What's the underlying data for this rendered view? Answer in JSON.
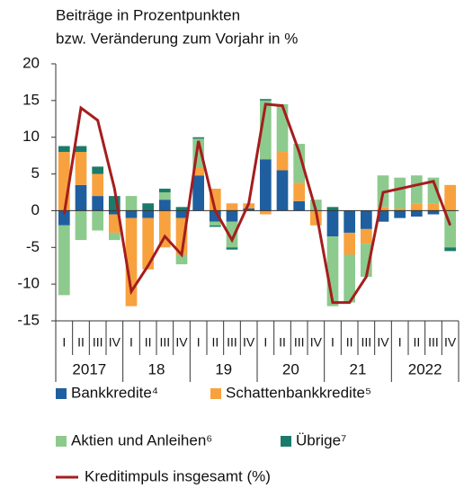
{
  "chart_data": {
    "type": "stacked_bar_line",
    "title_lines": [
      "Beiträge in Prozentpunkten",
      "bzw. Veränderung zum Vorjahr in %"
    ],
    "categories": [
      "I",
      "II",
      "III",
      "IV",
      "I",
      "II",
      "III",
      "IV",
      "I",
      "II",
      "III",
      "IV",
      "I",
      "II",
      "III",
      "IV",
      "I",
      "II",
      "III",
      "IV",
      "I",
      "II",
      "III",
      "IV"
    ],
    "year_labels": [
      "2017",
      "18",
      "19",
      "20",
      "21",
      "2022"
    ],
    "series": [
      {
        "name": "Bankkredite⁴",
        "color": "#1f5f9f",
        "values": [
          -2,
          3.5,
          2,
          -0.5,
          -1,
          -1,
          1.5,
          -1,
          4.8,
          -1.5,
          -1.5,
          0.3,
          7,
          5.5,
          1.3,
          0,
          -3.5,
          -3,
          -2.5,
          -1.5,
          -1,
          -0.8,
          -0.5,
          0
        ]
      },
      {
        "name": "Schattenbankkredite⁵",
        "color": "#f7a23e",
        "values": [
          8,
          4.5,
          3,
          -2.5,
          -12,
          -7,
          -5,
          -5,
          1,
          3,
          1,
          0.7,
          -0.5,
          2.5,
          2.5,
          -2,
          0,
          -3,
          -2,
          0.5,
          0.3,
          1,
          1,
          3.5
        ]
      },
      {
        "name": "Aktien und Anleihen⁶",
        "color": "#8dca8d",
        "values": [
          -9.5,
          -4,
          -2.7,
          -1,
          2,
          0,
          1,
          -1.3,
          4,
          -0.5,
          -3.5,
          0,
          8,
          6.5,
          5.3,
          1.5,
          -9.5,
          -6.5,
          -4.5,
          4.3,
          4.2,
          3.8,
          3.5,
          -5
        ]
      },
      {
        "name": "Übrige⁷",
        "color": "#1b7b6b",
        "values": [
          0.8,
          0.8,
          1,
          2,
          0,
          1,
          0.5,
          0.5,
          0.2,
          -0.2,
          -0.3,
          0,
          0.2,
          0,
          0,
          0,
          0.5,
          0,
          0,
          0,
          0,
          0,
          0,
          -0.5
        ]
      }
    ],
    "line": {
      "name": "Kreditimpuls insgesamt (%)",
      "color": "#a51d1d",
      "values": [
        -0.5,
        14,
        12.3,
        3,
        -11,
        -7.5,
        -3.5,
        -6,
        9.5,
        0,
        -4,
        1,
        14.5,
        14.3,
        8,
        0,
        -12.5,
        -12.5,
        -9,
        2.5,
        3,
        3.5,
        4,
        -2
      ]
    },
    "ylim": [
      -15,
      20
    ],
    "yticks": [
      -15,
      -10,
      -5,
      0,
      5,
      10,
      15,
      20
    ]
  }
}
